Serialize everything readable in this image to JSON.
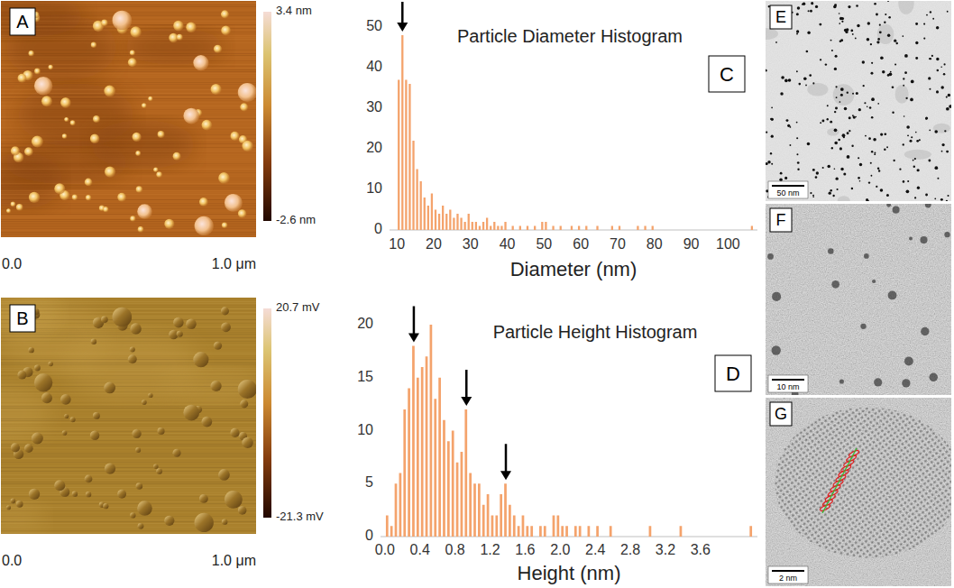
{
  "chart_data": [
    {
      "type": "histogram",
      "panel_label": "C",
      "title": "Particle Diameter Histogram",
      "x_label": "Diameter (nm)",
      "bins": [
        10,
        11,
        12,
        13,
        14,
        15,
        16,
        17,
        18,
        19,
        20,
        21,
        22,
        23,
        24,
        25,
        26,
        27,
        28,
        29,
        30,
        31,
        32,
        33,
        34,
        35,
        36,
        37,
        38,
        39,
        40,
        41,
        42,
        43,
        44,
        45,
        46,
        47,
        48,
        49,
        50,
        51,
        52,
        53,
        54,
        55,
        56,
        57,
        58,
        59,
        60,
        61,
        62,
        63,
        64,
        65,
        66,
        67,
        68,
        69,
        70,
        71,
        72,
        73,
        74,
        75,
        76,
        77,
        78,
        79,
        80,
        81,
        82,
        83,
        84,
        85,
        86,
        87,
        88,
        89,
        90,
        91,
        92,
        93,
        94,
        95,
        96,
        97,
        98,
        99,
        100,
        101,
        102,
        103,
        104,
        105,
        106,
        107,
        108
      ],
      "values": [
        37,
        48,
        37,
        36,
        22,
        15,
        12,
        8,
        6,
        9,
        5,
        4,
        6,
        4,
        5,
        3,
        4,
        3,
        2,
        4,
        2,
        2,
        1,
        2,
        3,
        1,
        2,
        1,
        1,
        2,
        0,
        1,
        0,
        1,
        0,
        1,
        0,
        1,
        0,
        2,
        2,
        0,
        1,
        0,
        1,
        0,
        0,
        1,
        0,
        1,
        0,
        1,
        0,
        0,
        1,
        0,
        0,
        0,
        1,
        0,
        1,
        0,
        0,
        0,
        0,
        1,
        0,
        1,
        0,
        1,
        0,
        0,
        0,
        0,
        0,
        0,
        0,
        0,
        0,
        0,
        0,
        0,
        0,
        0,
        0,
        0,
        0,
        0,
        0,
        0,
        0,
        0,
        0,
        0,
        0,
        0,
        1,
        0
      ],
      "color": "#f4a36c",
      "xlim": [
        8,
        108
      ],
      "ylim": [
        0,
        50
      ],
      "xticks": [
        10,
        20,
        30,
        40,
        50,
        60,
        70,
        80,
        90,
        100
      ],
      "yticks": [
        0,
        10,
        20,
        30,
        40,
        50
      ],
      "arrows_x": [
        11.5
      ],
      "grid": false
    },
    {
      "type": "histogram",
      "panel_label": "D",
      "title": "Particle Height Histogram",
      "x_label": "Height (nm)",
      "bins": [
        0,
        0.05,
        0.1,
        0.15,
        0.2,
        0.25,
        0.3,
        0.35,
        0.4,
        0.45,
        0.5,
        0.55,
        0.6,
        0.65,
        0.7,
        0.75,
        0.8,
        0.85,
        0.9,
        0.95,
        1,
        1.05,
        1.1,
        1.15,
        1.2,
        1.25,
        1.3,
        1.35,
        1.4,
        1.45,
        1.5,
        1.55,
        1.6,
        1.65,
        1.7,
        1.75,
        1.8,
        1.85,
        1.9,
        1.95,
        2,
        2.05,
        2.1,
        2.15,
        2.2,
        2.25,
        2.3,
        2.35,
        2.4,
        2.45,
        2.5,
        2.55,
        2.6,
        2.65,
        2.7,
        2.75,
        2.8,
        2.85,
        2.9,
        2.95,
        3,
        3.05,
        3.1,
        3.15,
        3.2,
        3.25,
        3.3,
        3.35,
        3.4,
        3.45,
        3.5,
        3.55,
        3.6,
        3.65,
        3.7,
        3.75,
        3.8,
        3.85,
        3.9,
        3.95,
        4,
        4.05,
        4.1,
        4.15,
        4.2
      ],
      "values": [
        2,
        1,
        5,
        6,
        12,
        14,
        18,
        15,
        16,
        17,
        20,
        13,
        15,
        11,
        9,
        10,
        7,
        8,
        12,
        6,
        5,
        5,
        3,
        4,
        2,
        2,
        4,
        5,
        3,
        2,
        1,
        2,
        1,
        1,
        0,
        1,
        1,
        0,
        2,
        2,
        1,
        1,
        0,
        1,
        1,
        0,
        1,
        0,
        1,
        0,
        0,
        1,
        0,
        0,
        0,
        0,
        0,
        0,
        0,
        0,
        1,
        0,
        0,
        0,
        0,
        0,
        0,
        1,
        0,
        0,
        0,
        0,
        0,
        0,
        0,
        0,
        0,
        0,
        0,
        0,
        0,
        0,
        0,
        1
      ],
      "color": "#f4a36c",
      "xlim": [
        -0.05,
        4.25
      ],
      "ylim": [
        0,
        20
      ],
      "xticks": [
        {
          "value": 0,
          "label": "0.0"
        },
        {
          "value": 0.4,
          "label": "0.4"
        },
        {
          "value": 0.8,
          "label": "0.8"
        },
        {
          "value": 1.2,
          "label": "1.2"
        },
        {
          "value": 1.6,
          "label": "1.6"
        },
        {
          "value": 2,
          "label": "2.0"
        },
        {
          "value": 2.4,
          "label": "2.4"
        },
        {
          "value": 2.8,
          "label": "2.8"
        },
        {
          "value": 3.2,
          "label": "3.2"
        },
        {
          "value": 3.6,
          "label": "3.6"
        }
      ],
      "yticks": [
        0,
        5,
        10,
        15,
        20
      ],
      "arrows_x": [
        0.33,
        0.93,
        1.38
      ],
      "grid": false
    }
  ],
  "images": [
    {
      "letter": "A",
      "kind": "afm-height",
      "colorbar": {
        "range": [
          -2.6,
          3.4
        ],
        "ticks": [
          {
            "value": 3.4,
            "label": "3.4 nm"
          },
          {
            "value": -2.6,
            "label": "-2.6 nm"
          }
        ]
      },
      "axis_labels": [
        "0.0",
        "1.0 μm"
      ]
    },
    {
      "letter": "B",
      "kind": "afm-phase",
      "colorbar": {
        "range": [
          -21.3,
          20.7
        ],
        "ticks": [
          {
            "value": 20.7,
            "label": "20.7 mV"
          },
          {
            "value": -21.3,
            "label": "-21.3 mV"
          }
        ]
      },
      "axis_labels": [
        "0.0",
        "1.0 μm"
      ]
    },
    {
      "letter": "E",
      "kind": "tem-low",
      "scale_bar": "50 nm"
    },
    {
      "letter": "F",
      "kind": "tem-mid",
      "scale_bar": "10 nm"
    },
    {
      "letter": "G",
      "kind": "tem-lattice",
      "scale_bar": "2 nm"
    }
  ]
}
